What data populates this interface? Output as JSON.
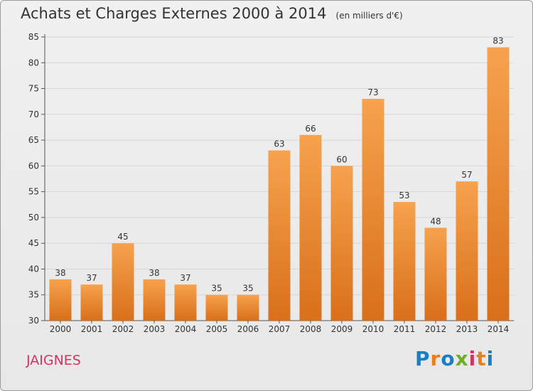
{
  "title": "Achats et Charges Externes 2000 à 2014",
  "unit": "(en milliers d'€)",
  "city": "JAIGNES",
  "logo": {
    "text": "Proxiti",
    "colors": [
      "#1a7ec2",
      "#e8801f",
      "#1a7ec2",
      "#6fae2c",
      "#d63361",
      "#e8801f",
      "#1a7ec2"
    ]
  },
  "colors": {
    "bar_top": "#f6a24e",
    "bar_bottom": "#d96f1a",
    "grid": "#d6d6d6",
    "city": "#d63361"
  },
  "chart_data": {
    "type": "bar",
    "title": "Achats et Charges Externes 2000 à 2014",
    "xlabel": "",
    "ylabel": "",
    "categories": [
      "2000",
      "2001",
      "2002",
      "2003",
      "2004",
      "2005",
      "2006",
      "2007",
      "2008",
      "2009",
      "2010",
      "2011",
      "2012",
      "2013",
      "2014"
    ],
    "values": [
      38,
      37,
      45,
      38,
      37,
      35,
      35,
      63,
      66,
      60,
      73,
      53,
      48,
      57,
      83
    ],
    "ylim": [
      30,
      85
    ],
    "yticks": [
      30,
      35,
      40,
      45,
      50,
      55,
      60,
      65,
      70,
      75,
      80,
      85
    ],
    "grid": true,
    "legend": "none"
  }
}
